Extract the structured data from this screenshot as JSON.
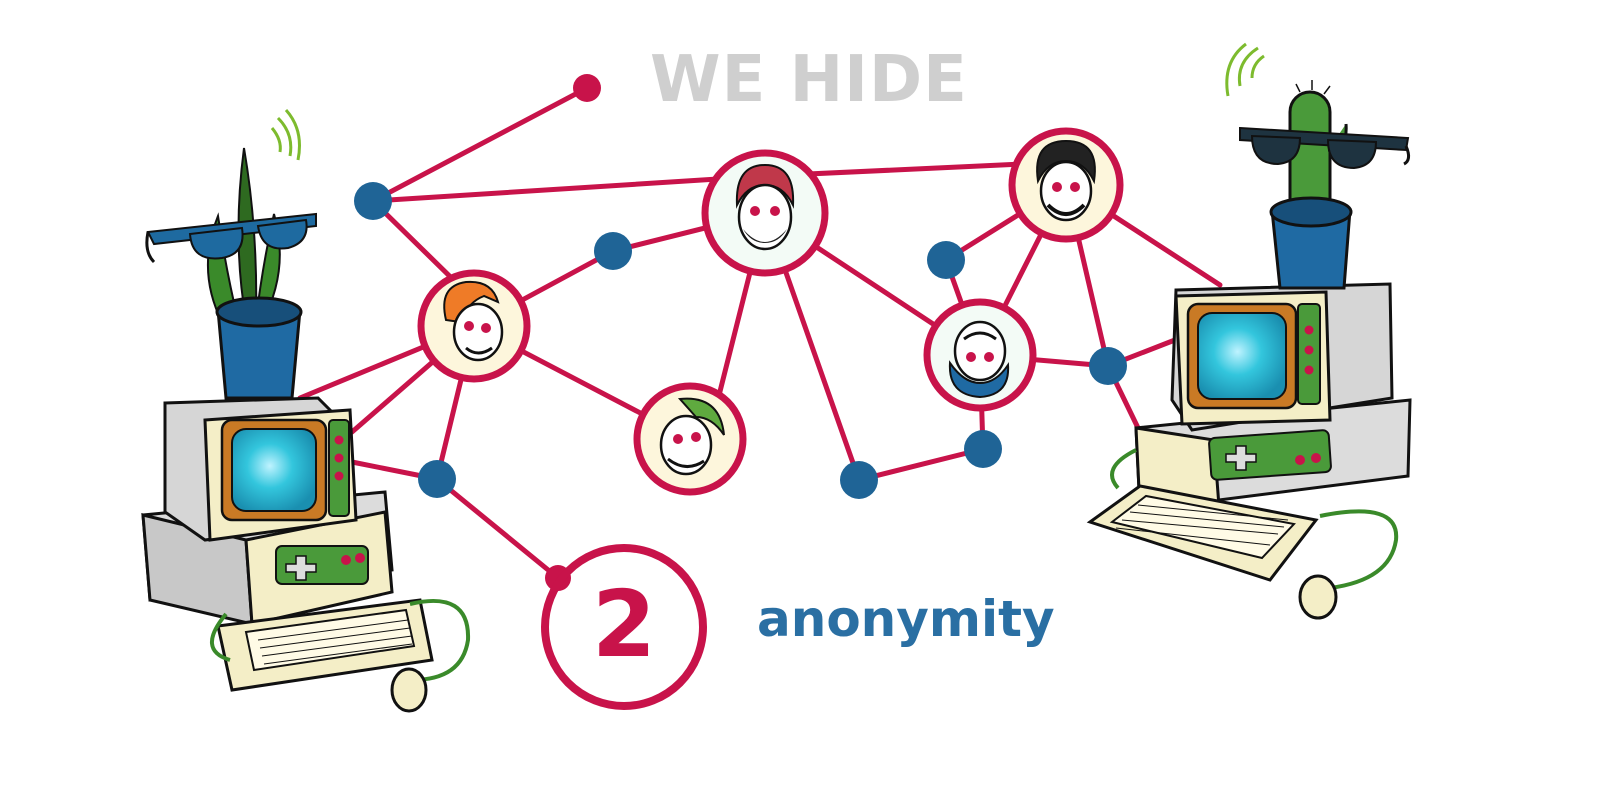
{
  "headline": {
    "text": "WE HIDE",
    "color": "#cfcfcf"
  },
  "badge": {
    "number": "2",
    "color": "#c8134a"
  },
  "caption": {
    "text": "anonymity",
    "color": "#2a6fa3"
  },
  "colors": {
    "network_edge": "#c8134a",
    "relay_node": "#1f6496",
    "computer_beige": "#f4eec7",
    "computer_screen": "#2fc2d9",
    "sunglasses": "#1e6aa0",
    "plant_pot": "#1f6aa3",
    "plant_green": "#3a8a2a"
  },
  "icons": {
    "avatars": [
      "orange-hair-user-icon",
      "red-hair-user-icon",
      "black-hair-user-icon",
      "green-hair-user-icon",
      "blue-hair-user-icon"
    ],
    "left_decor": [
      "retro-computer-icon",
      "potted-plant-icon",
      "sunglasses-icon",
      "signal-waves-icon",
      "mouse-icon"
    ],
    "right_decor": [
      "retro-computer-icon",
      "cactus-icon",
      "sunglasses-icon",
      "signal-waves-icon",
      "mouse-icon"
    ]
  }
}
